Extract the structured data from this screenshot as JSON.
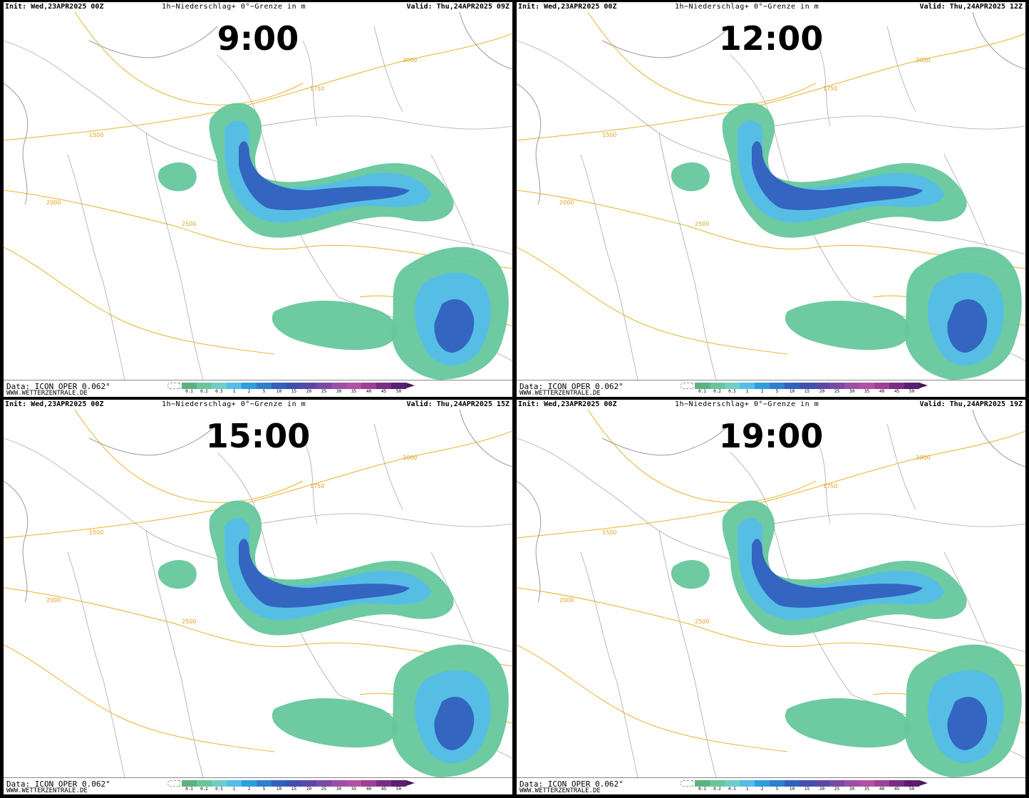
{
  "header": {
    "init": "Init: Wed,23APR2025 00Z",
    "title": "1h−Niederschlag+ 0°−Grenze in m"
  },
  "footer": {
    "data_line": "Data: ICON OPER 0.062°",
    "site": "WWW.WETTERZENTRALE.DE"
  },
  "legend": {
    "labels": [
      "0.1",
      "0.2",
      "0.5",
      "1",
      "2",
      "5",
      "10",
      "15",
      "20",
      "25",
      "30",
      "35",
      "40",
      "45",
      "50"
    ],
    "colors": [
      "#5fb17f",
      "#66c79c",
      "#6ecfc6",
      "#54bde8",
      "#2b9fe0",
      "#2f7fd0",
      "#3160bf",
      "#3f4fb2",
      "#5b47aa",
      "#7a4aa8",
      "#9b4fa7",
      "#b44fa3",
      "#9e3f98",
      "#7a2d86",
      "#5a1f70"
    ]
  },
  "contour_labels": [
    "1500",
    "1750",
    "2000",
    "2500",
    "3000"
  ],
  "panels": [
    {
      "time_label": "9:00",
      "valid": "Valid: Thu,24APR2025 09Z"
    },
    {
      "time_label": "12:00",
      "valid": "Valid: Thu,24APR2025 12Z"
    },
    {
      "time_label": "15:00",
      "valid": "Valid: Thu,24APR2025 15Z"
    },
    {
      "time_label": "19:00",
      "valid": "Valid: Thu,24APR2025 19Z"
    }
  ]
}
